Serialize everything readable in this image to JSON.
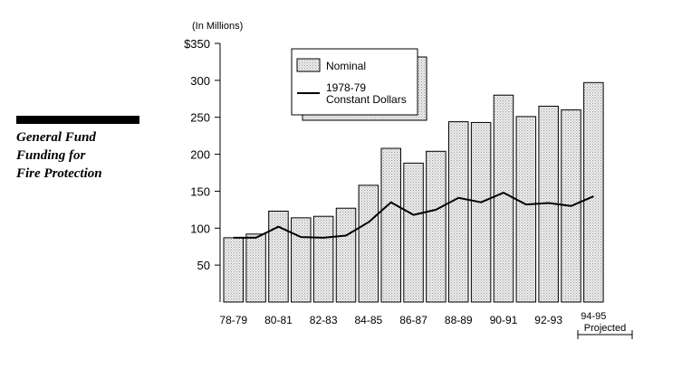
{
  "side": {
    "title_lines": [
      "General Fund",
      "Funding for",
      "Fire Protection"
    ]
  },
  "colors": {
    "bar_fill": "#e2e2e2",
    "bar_stroke": "#000000",
    "line": "#000000"
  },
  "chart_data": {
    "type": "bar",
    "title": "General Fund Funding for Fire Protection",
    "unit_label": "(In Millions)",
    "ylim": [
      0,
      350
    ],
    "y_ticks": [
      {
        "value": 350,
        "label": "$350"
      },
      {
        "value": 300,
        "label": "300"
      },
      {
        "value": 250,
        "label": "250"
      },
      {
        "value": 200,
        "label": "200"
      },
      {
        "value": 150,
        "label": "150"
      },
      {
        "value": 100,
        "label": "100"
      },
      {
        "value": 50,
        "label": "50"
      }
    ],
    "categories": [
      "78-79",
      "79-80",
      "80-81",
      "81-82",
      "82-83",
      "83-84",
      "84-85",
      "85-86",
      "86-87",
      "87-88",
      "88-89",
      "89-90",
      "90-91",
      "91-92",
      "92-93",
      "93-94",
      "94-95"
    ],
    "x_tick_labels": [
      "78-79",
      "80-81",
      "82-83",
      "84-85",
      "86-87",
      "88-89",
      "90-91",
      "92-93",
      "94-95"
    ],
    "projected_label": "Projected",
    "series": [
      {
        "name": "Nominal",
        "kind": "bar",
        "values": [
          87,
          92,
          123,
          114,
          116,
          127,
          158,
          208,
          188,
          204,
          244,
          243,
          280,
          251,
          265,
          260,
          297
        ]
      },
      {
        "name": "1978-79 Constant Dollars",
        "kind": "line",
        "values": [
          87,
          87,
          102,
          88,
          87,
          90,
          108,
          135,
          118,
          125,
          141,
          135,
          148,
          132,
          134,
          130,
          143
        ]
      }
    ],
    "legend": {
      "placement": "top-center",
      "entries": [
        {
          "label_lines": [
            "Nominal"
          ],
          "marker": "bar"
        },
        {
          "label_lines": [
            "1978-79",
            "Constant Dollars"
          ],
          "marker": "line"
        }
      ]
    }
  }
}
